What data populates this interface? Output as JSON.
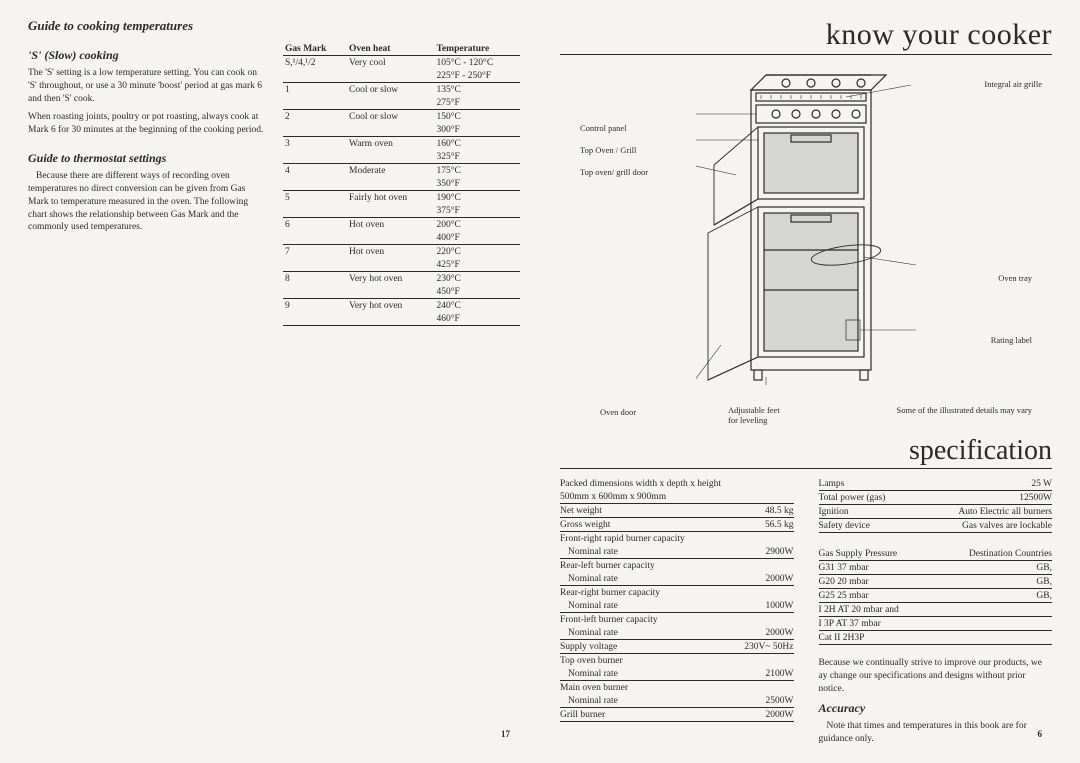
{
  "left": {
    "title": "Guide to cooking temperatures",
    "slow_title": "'S' (Slow) cooking",
    "slow_p1": "The 'S' setting is a low temperature setting. You can cook on 'S' throughout, or use a 30 minute 'boost' period at gas mark 6 and then 'S' cook.",
    "slow_p2": "When roasting joints, poultry or pot roasting, always cook at Mark 6 for 30 minutes at the beginning of the cooking period.",
    "therm_title": "Guide to thermostat settings",
    "therm_p": "Because there are different ways of recording oven temperatures no direct conversion can be given from Gas Mark to temperature measured in the oven. The following chart shows the relationship between Gas Mark and the commonly used temperatures.",
    "table_head": [
      "Gas Mark",
      "Oven heat",
      "Temperature"
    ],
    "table_rows": [
      [
        "S,¹/4,¹/2",
        "Very cool",
        "105°C - 120°C"
      ],
      [
        "",
        "",
        "225°F - 250°F"
      ],
      [
        "1",
        "Cool or slow",
        "135°C"
      ],
      [
        "",
        "",
        "275°F"
      ],
      [
        "2",
        "Cool or slow",
        "150°C"
      ],
      [
        "",
        "",
        "300°F"
      ],
      [
        "3",
        "Warm oven",
        "160°C"
      ],
      [
        "",
        "",
        "325°F"
      ],
      [
        "4",
        "Moderate",
        "175°C"
      ],
      [
        "",
        "",
        "350°F"
      ],
      [
        "5",
        "Fairly hot oven",
        "190°C"
      ],
      [
        "",
        "",
        "375°F"
      ],
      [
        "6",
        "Hot oven",
        "200°C"
      ],
      [
        "",
        "",
        "400°F"
      ],
      [
        "7",
        "Hot oven",
        "220°C"
      ],
      [
        "",
        "",
        "425°F"
      ],
      [
        "8",
        "Very hot oven",
        "230°C"
      ],
      [
        "",
        "",
        "450°F"
      ],
      [
        "9",
        "Very hot oven",
        "240°C"
      ],
      [
        "",
        "",
        "460°F"
      ]
    ],
    "page_num": "17"
  },
  "right": {
    "title1": "know your cooker",
    "diag_labels": {
      "integral": "Integral air grille",
      "control": "Control panel",
      "top_oven_grill": "Top Oven / Grill",
      "top_door": "Top oven/ grill door",
      "oven_tray": "Oven tray",
      "rating": "Rating label",
      "feet": "Adjustable feet\nfor leveling",
      "oven_door": "Oven door",
      "note": "Some of the illustrated details may vary"
    },
    "title2": "specification",
    "spec_left": {
      "packed_label": "Packed dimensions width x depth x height",
      "packed_val": "500mm x 600mm x 900mm",
      "net_weight_l": "Net weight",
      "net_weight_v": "48.5 kg",
      "gross_weight_l": "Gross weight",
      "gross_weight_v": "56.5 kg",
      "fr_label": "Front-right rapid burner capacity",
      "nominal": "Nominal rate",
      "fr_val": "2900W",
      "rl_label": "Rear-left burner capacity",
      "rl_val": "2000W",
      "rr_label": "Rear-right burner capacity",
      "rr_val": "1000W",
      "fl_label": "Front-left burner capacity",
      "fl_val": "2000W",
      "supply_l": "Supply voltage",
      "supply_v": "230V~ 50Hz",
      "top_oven_l": "Top oven burner",
      "top_oven_v": "2100W",
      "main_oven_l": "Main oven burner",
      "main_oven_v": "2500W",
      "grill_l": "Grill burner",
      "grill_v": "2000W"
    },
    "spec_right": {
      "lamps_l": "Lamps",
      "lamps_v": "25 W",
      "total_l": "Total power (gas)",
      "total_v": "12500W",
      "ign_l": "Ignition",
      "ign_v": "Auto Electric all burners",
      "safety_l": "Safety device",
      "safety_v": "Gas valves are lockable",
      "gsp_l": "Gas Supply Pressure",
      "gsp_v": "Destination Countries",
      "g31_l": "G31 37 mbar",
      "g31_v": "GB,",
      "g20_l": "G20 20 mbar",
      "g20_v": "GB,",
      "g25_l": "G25 25 mbar",
      "g25_v": "GB,",
      "i2h": "I 2H AT 20 mbar and",
      "i3p": "I 3P AT 37 mbar",
      "cat": "Cat   II  2H3P",
      "disclaim": "Because we continually strive to improve our products, we ay change our specifications and designs without prior notice.",
      "acc_title": "Accuracy",
      "acc_p": "Note that times and temperatures in this book are for guidance only."
    },
    "page_num": "6"
  },
  "colors": {
    "text": "#2a2a2a",
    "bg": "#f5f4f1",
    "line": "#2a2a2a"
  }
}
